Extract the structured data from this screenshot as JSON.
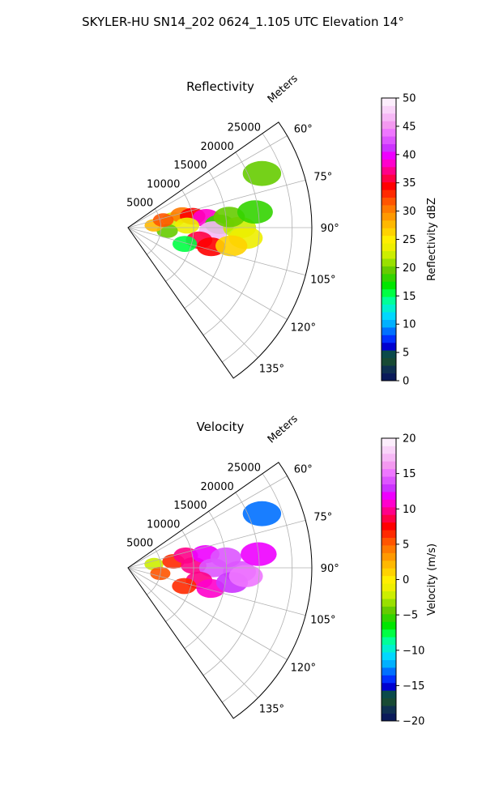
{
  "suptitle": "SKYLER-HU  SN14_202  0624_1.105 UTC Elevation 14°",
  "chart_data": [
    {
      "type": "polar-sector",
      "title": "Reflectivity",
      "radial_label": "Meters",
      "r_max": 28000,
      "r_ticks": [
        5000,
        10000,
        15000,
        20000,
        25000
      ],
      "r_tick_labels": [
        "5000",
        "10000",
        "15000",
        "20000",
        "25000"
      ],
      "theta_range_deg": [
        55,
        145
      ],
      "theta_ticks_deg": [
        60,
        75,
        90,
        105,
        120,
        135
      ],
      "theta_tick_labels": [
        "60°",
        "75°",
        "90°",
        "105°",
        "120°",
        "135°"
      ],
      "grid": true,
      "colorbar": {
        "label": "Reflectivity dBZ",
        "range": [
          0,
          50
        ],
        "ticks": [
          0,
          5,
          10,
          15,
          20,
          25,
          30,
          35,
          40,
          45,
          50
        ],
        "tick_labels": [
          "0",
          "5",
          "10",
          "15",
          "20",
          "25",
          "30",
          "35",
          "40",
          "45",
          "50"
        ],
        "colors": [
          "#0a1a5a",
          "#0f3050",
          "#184a34",
          "#0a4a4a",
          "#0000d0",
          "#0030ff",
          "#0070ff",
          "#00b0ff",
          "#00d8ff",
          "#00f0d0",
          "#00ff99",
          "#00ff44",
          "#00e600",
          "#33d400",
          "#66cc00",
          "#99e000",
          "#ccee00",
          "#eeee00",
          "#ffee00",
          "#ffd200",
          "#ffb800",
          "#ff9900",
          "#ff7a00",
          "#ff5500",
          "#ff2a00",
          "#ff0000",
          "#ff0044",
          "#ff0088",
          "#ff00cc",
          "#ee00ff",
          "#cc33ff",
          "#dd55ff",
          "#ee77ff",
          "#f399f0",
          "#f6b8f6",
          "#f9d4f9",
          "#fceefc"
        ]
      },
      "echo_regions": [
        {
          "r": 7000,
          "theta": 80,
          "value": 22
        },
        {
          "r": 8500,
          "theta": 77,
          "value": 30
        },
        {
          "r": 10000,
          "theta": 80,
          "value": 35
        },
        {
          "r": 12000,
          "theta": 83,
          "value": 38
        },
        {
          "r": 9000,
          "theta": 88,
          "value": 24
        },
        {
          "r": 14000,
          "theta": 88,
          "value": 18
        },
        {
          "r": 13000,
          "theta": 92,
          "value": 46
        },
        {
          "r": 17000,
          "theta": 90,
          "value": 22
        },
        {
          "r": 18000,
          "theta": 95,
          "value": 24
        },
        {
          "r": 11000,
          "theta": 100,
          "value": 36
        },
        {
          "r": 9000,
          "theta": 106,
          "value": 16
        },
        {
          "r": 13000,
          "theta": 103,
          "value": 34
        },
        {
          "r": 16000,
          "theta": 100,
          "value": 26
        },
        {
          "r": 6000,
          "theta": 95,
          "value": 20
        },
        {
          "r": 4000,
          "theta": 85,
          "value": 28
        },
        {
          "r": 5500,
          "theta": 78,
          "value": 32
        },
        {
          "r": 15500,
          "theta": 84,
          "value": 20
        },
        {
          "r": 19500,
          "theta": 83,
          "value": 18
        },
        {
          "r": 22000,
          "theta": 68,
          "value": 19
        }
      ]
    },
    {
      "type": "polar-sector",
      "title": "Velocity",
      "radial_label": "Meters",
      "r_max": 28000,
      "r_ticks": [
        5000,
        10000,
        15000,
        20000,
        25000
      ],
      "r_tick_labels": [
        "5000",
        "10000",
        "15000",
        "20000",
        "25000"
      ],
      "theta_range_deg": [
        55,
        145
      ],
      "theta_ticks_deg": [
        60,
        75,
        90,
        105,
        120,
        135
      ],
      "theta_tick_labels": [
        "60°",
        "75°",
        "90°",
        "105°",
        "120°",
        "135°"
      ],
      "grid": true,
      "colorbar": {
        "label": "Velocity (m/s)",
        "range": [
          -20,
          20
        ],
        "ticks": [
          -20,
          -15,
          -10,
          -5,
          0,
          5,
          10,
          15,
          20
        ],
        "tick_labels": [
          "−20",
          "−15",
          "−10",
          "−5",
          "0",
          "5",
          "10",
          "15",
          "20"
        ],
        "colors": [
          "#0a1a5a",
          "#0f3050",
          "#184a34",
          "#0a4a4a",
          "#0000d0",
          "#0030ff",
          "#0070ff",
          "#00b0ff",
          "#00d8ff",
          "#00f0d0",
          "#00ff99",
          "#00ff44",
          "#00e600",
          "#33d400",
          "#66cc00",
          "#99e000",
          "#ccee00",
          "#eeee00",
          "#ffee00",
          "#ffd200",
          "#ffb800",
          "#ff9900",
          "#ff7a00",
          "#ff5500",
          "#ff2a00",
          "#ff0000",
          "#ff0044",
          "#ff0088",
          "#ff00cc",
          "#ee00ff",
          "#cc33ff",
          "#dd55ff",
          "#ee77ff",
          "#f399f0",
          "#f6b8f6",
          "#f9d4f9",
          "#fceefc"
        ]
      },
      "echo_regions": [
        {
          "r": 4000,
          "theta": 82,
          "value": -2
        },
        {
          "r": 5000,
          "theta": 100,
          "value": 5
        },
        {
          "r": 7000,
          "theta": 82,
          "value": 7
        },
        {
          "r": 9000,
          "theta": 78,
          "value": 10
        },
        {
          "r": 10000,
          "theta": 88,
          "value": 10
        },
        {
          "r": 12000,
          "theta": 80,
          "value": 12
        },
        {
          "r": 13000,
          "theta": 90,
          "value": 14
        },
        {
          "r": 15000,
          "theta": 84,
          "value": 14
        },
        {
          "r": 17000,
          "theta": 92,
          "value": 14
        },
        {
          "r": 11000,
          "theta": 100,
          "value": 10
        },
        {
          "r": 13000,
          "theta": 104,
          "value": 11
        },
        {
          "r": 9000,
          "theta": 108,
          "value": 7
        },
        {
          "r": 16000,
          "theta": 98,
          "value": 13
        },
        {
          "r": 18000,
          "theta": 94,
          "value": 15
        },
        {
          "r": 20000,
          "theta": 84,
          "value": 12
        },
        {
          "r": 22000,
          "theta": 68,
          "value": -13
        }
      ]
    }
  ]
}
